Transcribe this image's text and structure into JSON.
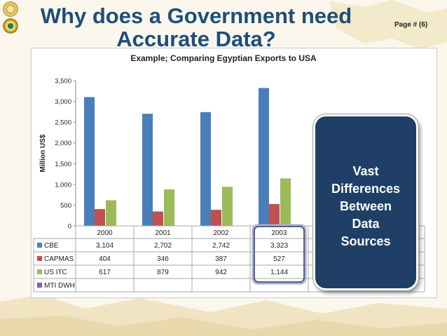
{
  "slide": {
    "title": "Why does a Government need Accurate Data?",
    "page_number": "Page # (6)"
  },
  "callout": {
    "text": "Vast\nDifferences\nBetween\nData\nSources"
  },
  "colors": {
    "title": "#1f4e79",
    "CBE": "#4a7ebb",
    "CAPMAS": "#c0504d",
    "US ITC": "#9bbb59",
    "MTI DWH": "#8064a2",
    "callout_bg": "#1f3f66"
  },
  "chart_data": {
    "type": "bar",
    "title": "Example; Comparing Egyptian Exports to USA",
    "ylabel": "Million US$",
    "xlabel": "",
    "categories": [
      "2000",
      "2001",
      "2002",
      "2003"
    ],
    "ylim": [
      0,
      3500
    ],
    "yticks": [
      "0",
      "500",
      "1,000",
      "1,500",
      "2,000",
      "2,500",
      "3,000",
      "3,500"
    ],
    "grid": false,
    "legend": "data-table",
    "series": [
      {
        "name": "CBE",
        "values": [
          3104,
          2702,
          2742,
          3323
        ],
        "labels": [
          "3,104",
          "2,702",
          "2,742",
          "3,323"
        ]
      },
      {
        "name": "CAPMAS",
        "values": [
          404,
          346,
          387,
          527
        ],
        "labels": [
          "404",
          "346",
          "387",
          "527"
        ]
      },
      {
        "name": "US ITC",
        "values": [
          617,
          879,
          942,
          1144
        ],
        "labels": [
          "617",
          "879",
          "942",
          "1,144"
        ]
      },
      {
        "name": "MTI DWH",
        "values": [
          null,
          null,
          null,
          null
        ],
        "labels": [
          "",
          "",
          "",
          ""
        ]
      }
    ],
    "highlighted_category": "2003"
  }
}
